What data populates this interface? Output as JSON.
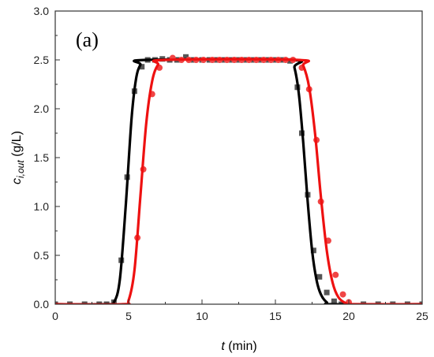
{
  "chart_data": {
    "type": "line",
    "panel_label": "(a)",
    "xlabel": {
      "var": "t",
      "unit": " (min)"
    },
    "ylabel": {
      "base": "c",
      "sub": "i,out",
      "unit": " (g/L)"
    },
    "xlim": [
      0,
      25
    ],
    "ylim": [
      0,
      3.0
    ],
    "x_ticks": [
      "0",
      "5",
      "10",
      "15",
      "20",
      "25"
    ],
    "y_ticks": [
      "0.0",
      "0.5",
      "1.0",
      "1.5",
      "2.0",
      "2.5",
      "3.0"
    ],
    "grid": false,
    "series": [
      {
        "color": "#000000",
        "marker": "square",
        "points": [
          [
            0,
            0
          ],
          [
            1,
            0
          ],
          [
            2,
            0
          ],
          [
            3,
            0
          ],
          [
            3.5,
            0
          ],
          [
            4,
            0.02
          ],
          [
            4.5,
            0.45
          ],
          [
            4.9,
            1.3
          ],
          [
            5.4,
            2.18
          ],
          [
            5.9,
            2.43
          ],
          [
            6.3,
            2.5
          ],
          [
            6.8,
            2.5
          ],
          [
            7.3,
            2.51
          ],
          [
            7.8,
            2.5
          ],
          [
            8.3,
            2.5
          ],
          [
            8.9,
            2.53
          ],
          [
            9.4,
            2.5
          ],
          [
            10,
            2.5
          ],
          [
            10.5,
            2.5
          ],
          [
            11,
            2.5
          ],
          [
            11.5,
            2.5
          ],
          [
            12,
            2.5
          ],
          [
            12.5,
            2.5
          ],
          [
            13,
            2.5
          ],
          [
            13.5,
            2.5
          ],
          [
            14,
            2.5
          ],
          [
            14.5,
            2.5
          ],
          [
            15,
            2.5
          ],
          [
            15.5,
            2.5
          ],
          [
            16,
            2.49
          ],
          [
            16.5,
            2.22
          ],
          [
            16.8,
            1.75
          ],
          [
            17.2,
            1.12
          ],
          [
            17.6,
            0.55
          ],
          [
            18,
            0.28
          ],
          [
            18.5,
            0.12
          ],
          [
            19,
            0.03
          ],
          [
            19.5,
            0
          ],
          [
            20,
            0
          ],
          [
            21,
            0
          ],
          [
            22,
            0
          ],
          [
            23,
            0
          ],
          [
            24,
            0
          ],
          [
            25,
            0
          ]
        ],
        "curve": [
          [
            0,
            0
          ],
          [
            3.5,
            0
          ],
          [
            4,
            0.02
          ],
          [
            4.4,
            0.25
          ],
          [
            4.8,
            1.0
          ],
          [
            5.2,
            1.9
          ],
          [
            5.5,
            2.3
          ],
          [
            5.8,
            2.45
          ],
          [
            6.2,
            2.5
          ],
          [
            16,
            2.5
          ],
          [
            16.3,
            2.42
          ],
          [
            16.6,
            2.15
          ],
          [
            16.9,
            1.65
          ],
          [
            17.2,
            1.05
          ],
          [
            17.5,
            0.55
          ],
          [
            17.8,
            0.25
          ],
          [
            18.1,
            0.1
          ],
          [
            18.5,
            0.02
          ],
          [
            19,
            0
          ],
          [
            25,
            0
          ]
        ]
      },
      {
        "color": "#ee1111",
        "marker": "circle",
        "points": [
          [
            5.6,
            0.68
          ],
          [
            6,
            1.38
          ],
          [
            6.6,
            2.15
          ],
          [
            7.1,
            2.42
          ],
          [
            8,
            2.52
          ],
          [
            8.6,
            2.5
          ],
          [
            9.1,
            2.5
          ],
          [
            9.6,
            2.5
          ],
          [
            10.1,
            2.5
          ],
          [
            10.7,
            2.5
          ],
          [
            11.2,
            2.5
          ],
          [
            11.7,
            2.5
          ],
          [
            12.2,
            2.5
          ],
          [
            12.7,
            2.5
          ],
          [
            13.2,
            2.5
          ],
          [
            13.7,
            2.5
          ],
          [
            14.2,
            2.5
          ],
          [
            14.7,
            2.5
          ],
          [
            15.2,
            2.5
          ],
          [
            15.7,
            2.5
          ],
          [
            16.2,
            2.5
          ],
          [
            16.8,
            2.42
          ],
          [
            17.3,
            2.2
          ],
          [
            17.8,
            1.68
          ],
          [
            18.1,
            1.05
          ],
          [
            18.6,
            0.65
          ],
          [
            19.1,
            0.3
          ],
          [
            19.6,
            0.1
          ],
          [
            20,
            0.02
          ]
        ],
        "curve": [
          [
            0,
            0
          ],
          [
            4.6,
            0
          ],
          [
            5.0,
            0.04
          ],
          [
            5.4,
            0.35
          ],
          [
            5.8,
            1.1
          ],
          [
            6.2,
            1.85
          ],
          [
            6.6,
            2.28
          ],
          [
            7.0,
            2.45
          ],
          [
            7.5,
            2.5
          ],
          [
            16.5,
            2.5
          ],
          [
            16.9,
            2.44
          ],
          [
            17.3,
            2.22
          ],
          [
            17.7,
            1.75
          ],
          [
            18.1,
            1.1
          ],
          [
            18.5,
            0.55
          ],
          [
            18.9,
            0.22
          ],
          [
            19.3,
            0.07
          ],
          [
            19.8,
            0.01
          ],
          [
            20.2,
            0
          ],
          [
            25,
            0
          ]
        ]
      }
    ]
  }
}
